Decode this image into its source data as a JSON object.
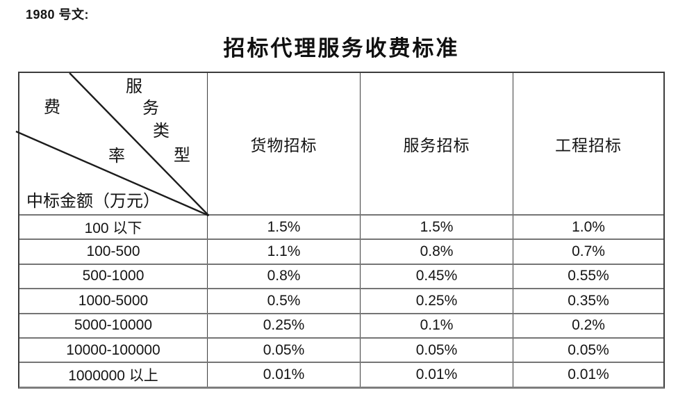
{
  "page": {
    "doc_ref": "1980 号文:",
    "title": "招标代理服务收费标准"
  },
  "table": {
    "corner": {
      "service_type_label": "服务类型",
      "service_type_chars": [
        "服",
        "务",
        "类",
        "型"
      ],
      "fee_rate_label": "费率",
      "fee_rate_chars": [
        "费",
        "率"
      ],
      "amount_label": "中标金额（万元）"
    },
    "columns": [
      "货物招标",
      "服务招标",
      "工程招标"
    ],
    "rows": [
      {
        "amount": "100 以下",
        "values": [
          "1.5%",
          "1.5%",
          "1.0%"
        ]
      },
      {
        "amount": "100-500",
        "values": [
          "1.1%",
          "0.8%",
          "0.7%"
        ]
      },
      {
        "amount": "500-1000",
        "values": [
          "0.8%",
          "0.45%",
          "0.55%"
        ]
      },
      {
        "amount": "1000-5000",
        "values": [
          "0.5%",
          "0.25%",
          "0.35%"
        ]
      },
      {
        "amount": "5000-10000",
        "values": [
          "0.25%",
          "0.1%",
          "0.2%"
        ]
      },
      {
        "amount": "10000-100000",
        "values": [
          "0.05%",
          "0.05%",
          "0.05%"
        ]
      },
      {
        "amount": "1000000 以上",
        "values": [
          "0.01%",
          "0.01%",
          "0.01%"
        ]
      }
    ]
  }
}
